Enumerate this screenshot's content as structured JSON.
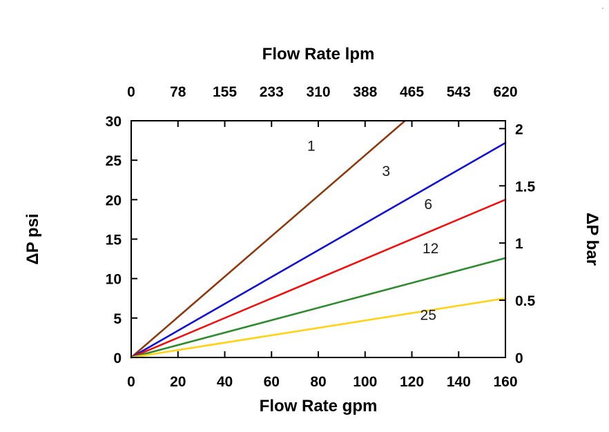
{
  "chart_data": {
    "type": "line",
    "title": "",
    "grid": false,
    "legend": "none",
    "top_axis": {
      "label": "Flow Rate lpm",
      "ticks": [
        "0",
        "78",
        "155",
        "233",
        "310",
        "388",
        "465",
        "543",
        "620"
      ]
    },
    "bottom_axis": {
      "label": "Flow Rate gpm",
      "ticks": [
        0,
        20,
        40,
        60,
        80,
        100,
        120,
        140,
        160
      ],
      "range": [
        0,
        160
      ]
    },
    "left_axis": {
      "label": "ΔP psi",
      "ticks": [
        0,
        5,
        10,
        15,
        20,
        25,
        30
      ],
      "range": [
        0,
        30
      ]
    },
    "right_axis": {
      "label": "ΔP bar",
      "ticks": [
        "0",
        "0.5",
        "1",
        "1.5",
        "2"
      ],
      "range": [
        0,
        2
      ],
      "psi_per_bar": 14.5038
    },
    "series": [
      {
        "name": "1",
        "color": "#8b3a0f",
        "x": [
          0,
          160
        ],
        "y": [
          0,
          41.0
        ],
        "label_pos": {
          "x": 77,
          "y": 26.8
        }
      },
      {
        "name": "3",
        "color": "#1212cc",
        "x": [
          0,
          160
        ],
        "y": [
          0,
          27.2
        ],
        "label_pos": {
          "x": 109,
          "y": 23.6
        }
      },
      {
        "name": "6",
        "color": "#ee1111",
        "x": [
          0,
          160
        ],
        "y": [
          0,
          20.0
        ],
        "label_pos": {
          "x": 127,
          "y": 19.4
        }
      },
      {
        "name": "12",
        "color": "#2e8b2e",
        "x": [
          0,
          160
        ],
        "y": [
          0,
          12.6
        ],
        "label_pos": {
          "x": 128,
          "y": 13.8
        }
      },
      {
        "name": "25",
        "color": "#ffd213",
        "x": [
          0,
          160
        ],
        "y": [
          0,
          7.5
        ],
        "label_pos": {
          "x": 127,
          "y": 5.4
        }
      }
    ]
  }
}
